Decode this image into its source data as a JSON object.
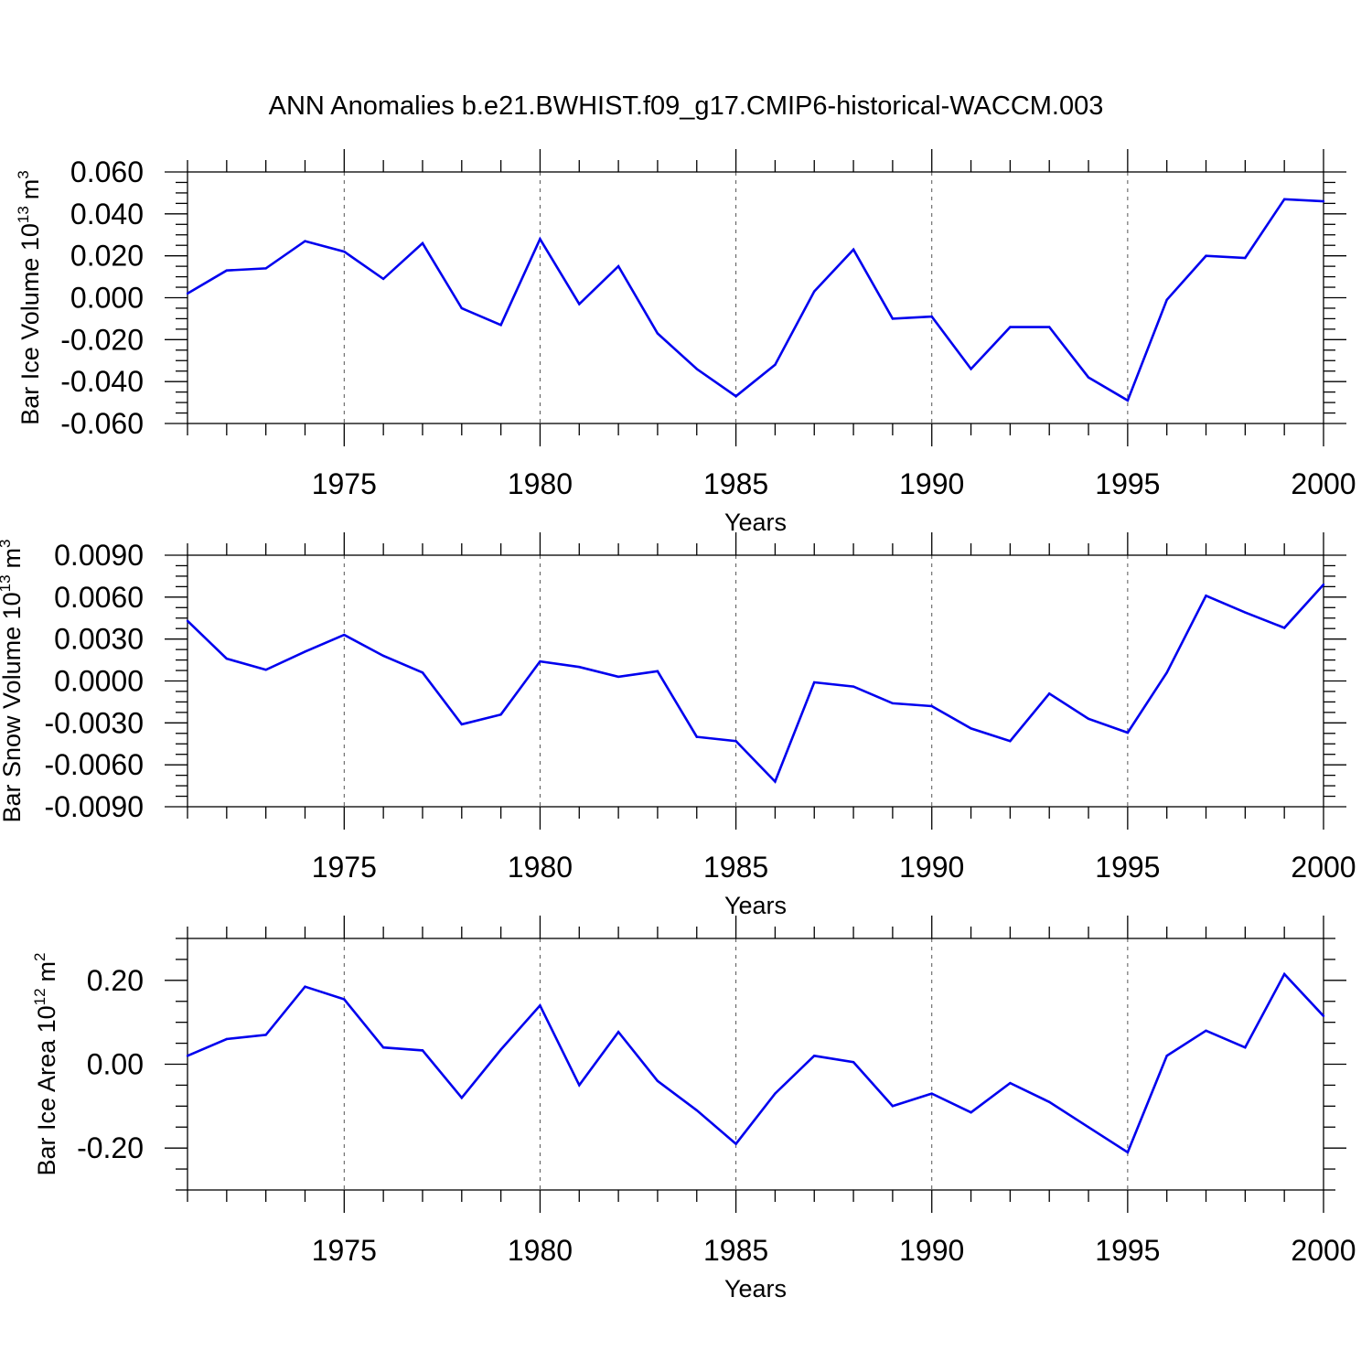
{
  "figure": {
    "title": "ANN Anomalies b.e21.BWHIST.f09_g17.CMIP6-historical-WACCM.003"
  },
  "chart_data": [
    {
      "type": "line",
      "ylabel": "Bar Ice Volume 10",
      "ylabel_sup": "13",
      "ylabel_unit": "m",
      "ylabel_unit_sup": "3",
      "xlabel": "Years",
      "xlim": [
        1971,
        2000
      ],
      "ylim": [
        -0.06,
        0.06
      ],
      "yticks": [
        -0.06,
        -0.04,
        -0.02,
        0.0,
        0.02,
        0.04,
        0.06
      ],
      "ytick_labels": [
        "-0.060",
        "-0.040",
        "-0.020",
        "0.000",
        "0.020",
        "0.040",
        "0.060"
      ],
      "xticks": [
        1975,
        1980,
        1985,
        1990,
        1995,
        2000
      ],
      "xtick_labels": [
        "1975",
        "1980",
        "1985",
        "1990",
        "1995",
        "2000"
      ],
      "grid": "vertical-dashed",
      "color": "#0000ee",
      "x": [
        1971,
        1972,
        1973,
        1974,
        1975,
        1976,
        1977,
        1978,
        1979,
        1980,
        1981,
        1982,
        1983,
        1984,
        1985,
        1986,
        1987,
        1988,
        1989,
        1990,
        1991,
        1992,
        1993,
        1994,
        1995,
        1996,
        1997,
        1998,
        1999,
        2000
      ],
      "values": [
        0.002,
        0.013,
        0.014,
        0.027,
        0.022,
        0.009,
        0.026,
        -0.005,
        -0.013,
        0.028,
        -0.003,
        0.015,
        -0.017,
        -0.034,
        -0.047,
        -0.032,
        0.003,
        0.023,
        -0.01,
        -0.009,
        -0.034,
        -0.014,
        -0.014,
        -0.038,
        -0.049,
        -0.001,
        0.02,
        0.019,
        0.047,
        0.046
      ]
    },
    {
      "type": "line",
      "ylabel": "Bar Snow Volume 10",
      "ylabel_sup": "13",
      "ylabel_unit": "m",
      "ylabel_unit_sup": "3",
      "xlabel": "Years",
      "xlim": [
        1971,
        2000
      ],
      "ylim": [
        -0.009,
        0.009
      ],
      "yticks": [
        -0.009,
        -0.006,
        -0.003,
        0.0,
        0.003,
        0.006,
        0.009
      ],
      "ytick_labels": [
        "-0.0090",
        "-0.0060",
        "-0.0030",
        "0.0000",
        "0.0030",
        "0.0060",
        "0.0090"
      ],
      "xticks": [
        1975,
        1980,
        1985,
        1990,
        1995,
        2000
      ],
      "xtick_labels": [
        "1975",
        "1980",
        "1985",
        "1990",
        "1995",
        "2000"
      ],
      "grid": "vertical-dashed",
      "color": "#0000ee",
      "x": [
        1971,
        1972,
        1973,
        1974,
        1975,
        1976,
        1977,
        1978,
        1979,
        1980,
        1981,
        1982,
        1983,
        1984,
        1985,
        1986,
        1987,
        1988,
        1989,
        1990,
        1991,
        1992,
        1993,
        1994,
        1995,
        1996,
        1997,
        1998,
        1999,
        2000
      ],
      "values": [
        0.0043,
        0.0016,
        0.0008,
        0.0021,
        0.0033,
        0.0018,
        0.0006,
        -0.0031,
        -0.0024,
        0.0014,
        0.001,
        0.0003,
        0.0007,
        -0.004,
        -0.0043,
        -0.0072,
        -0.0001,
        -0.0004,
        -0.0016,
        -0.0018,
        -0.0034,
        -0.0043,
        -0.0009,
        -0.0027,
        -0.0037,
        0.0006,
        0.0061,
        0.0049,
        0.0038,
        0.0069
      ]
    },
    {
      "type": "line",
      "ylabel": "Bar Ice Area 10",
      "ylabel_sup": "12",
      "ylabel_unit": "m",
      "ylabel_unit_sup": "2",
      "xlabel": "Years",
      "xlim": [
        1971,
        2000
      ],
      "ylim": [
        -0.3,
        0.3
      ],
      "yticks": [
        -0.2,
        0.0,
        0.2
      ],
      "ytick_labels": [
        "-0.20",
        "0.00",
        "0.20"
      ],
      "xticks": [
        1975,
        1980,
        1985,
        1990,
        1995,
        2000
      ],
      "xtick_labels": [
        "1975",
        "1980",
        "1985",
        "1990",
        "1995",
        "2000"
      ],
      "grid": "vertical-dashed",
      "color": "#0000ee",
      "x": [
        1971,
        1972,
        1973,
        1974,
        1975,
        1976,
        1977,
        1978,
        1979,
        1980,
        1981,
        1982,
        1983,
        1984,
        1985,
        1986,
        1987,
        1988,
        1989,
        1990,
        1991,
        1992,
        1993,
        1994,
        1995,
        1996,
        1997,
        1998,
        1999,
        2000
      ],
      "values": [
        0.02,
        0.06,
        0.07,
        0.185,
        0.155,
        0.04,
        0.033,
        -0.08,
        0.035,
        0.14,
        -0.05,
        0.077,
        -0.04,
        -0.11,
        -0.19,
        -0.07,
        0.02,
        0.005,
        -0.1,
        -0.07,
        -0.115,
        -0.045,
        -0.09,
        -0.15,
        -0.21,
        0.02,
        0.08,
        0.04,
        0.215,
        0.115
      ]
    }
  ]
}
